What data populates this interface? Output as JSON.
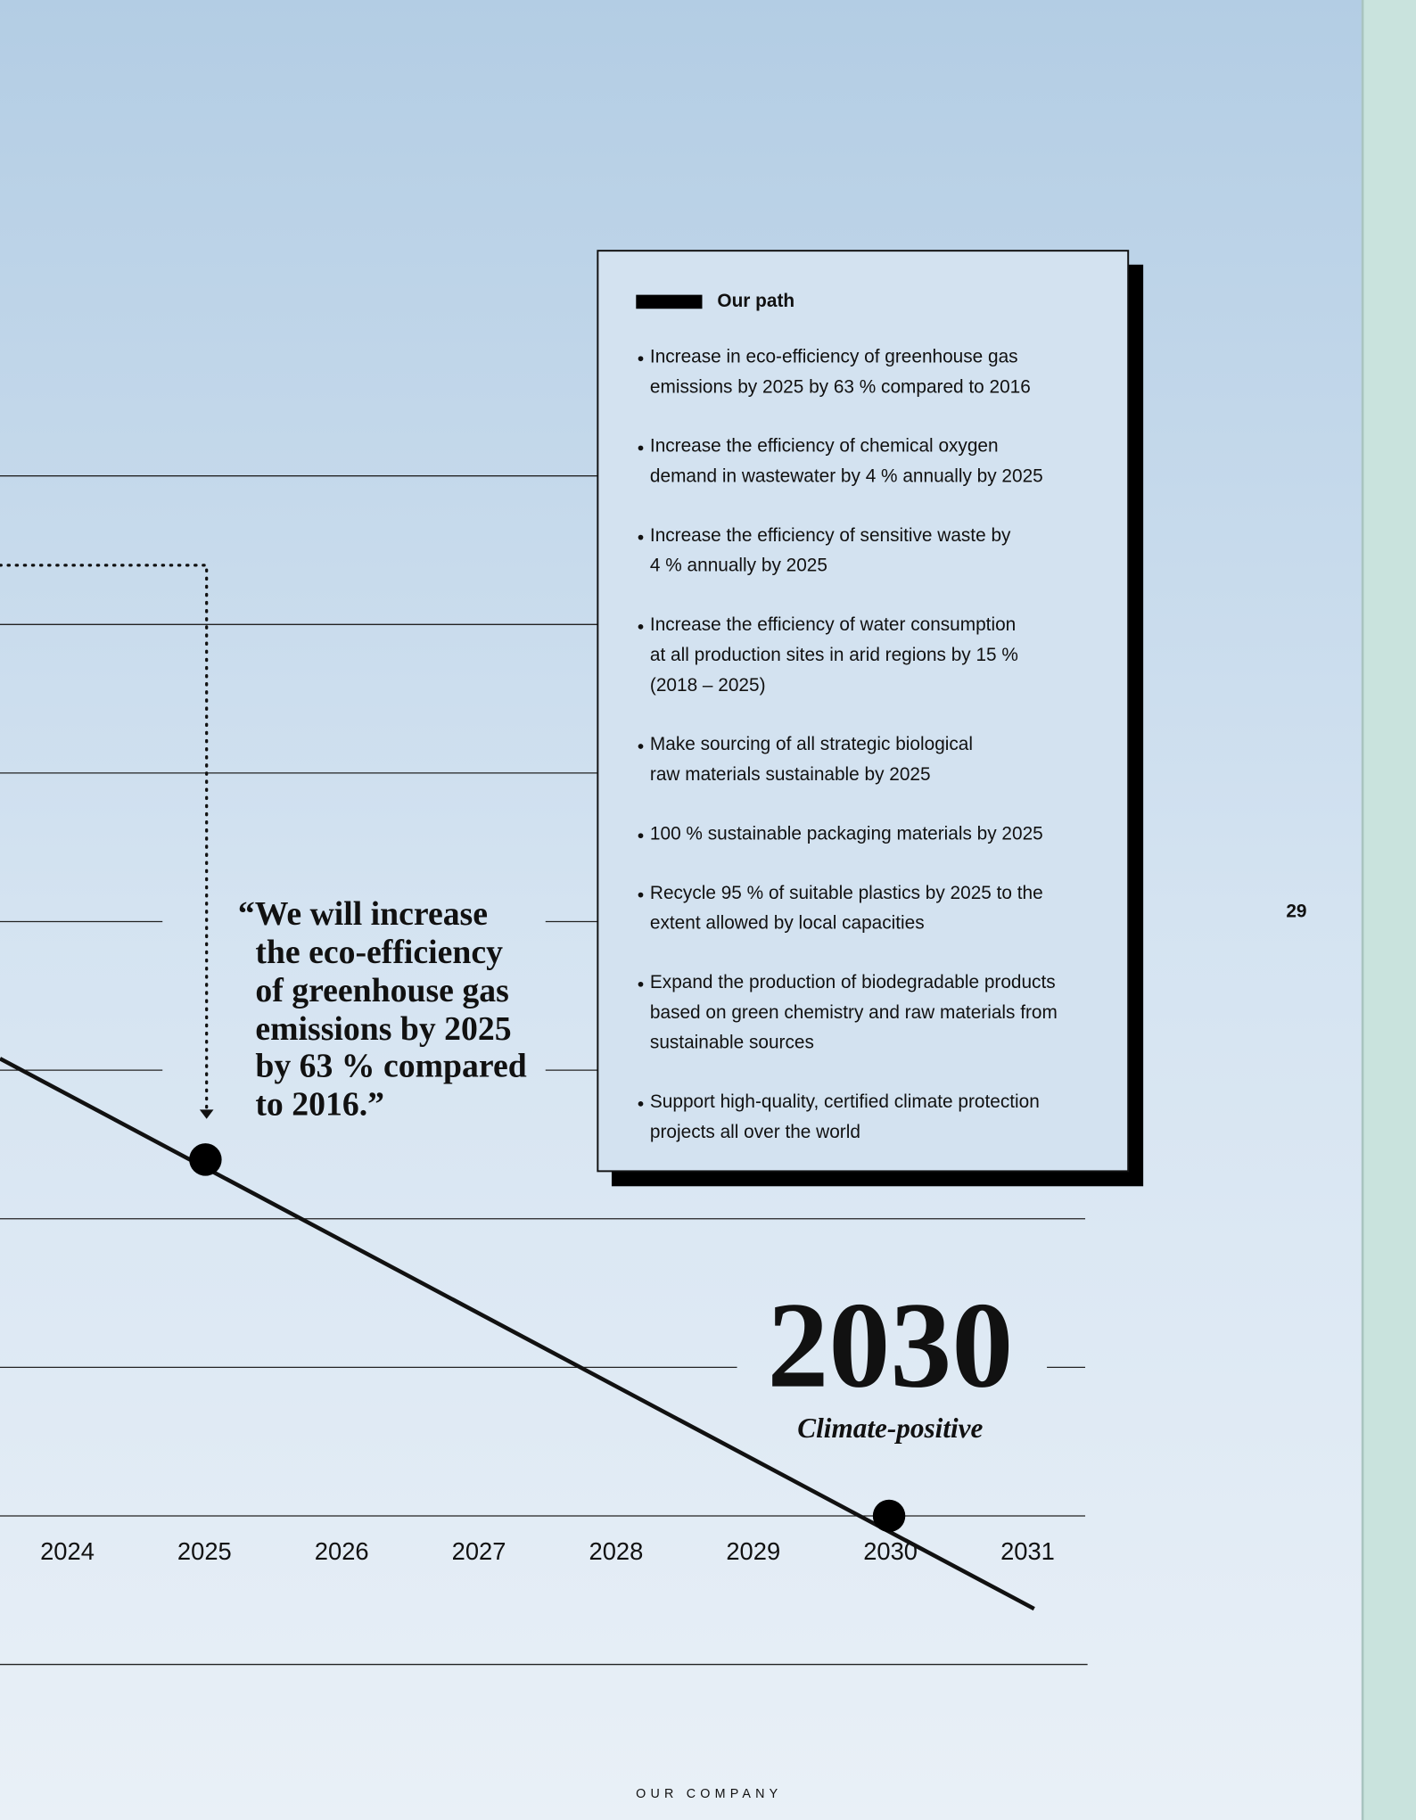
{
  "box": {
    "title": "Our path",
    "items": [
      [
        "Increase in eco-efficiency of greenhouse gas",
        "emissions by 2025 by 63 % compared to 2016"
      ],
      [
        "Increase the efficiency of chemical oxygen",
        "demand in wastewater by 4 % annually by 2025"
      ],
      [
        "Increase the efficiency of sensitive waste by",
        "4 % annually by 2025"
      ],
      [
        "Increase the efficiency of water consumption",
        "at all production sites in arid regions by 15 %",
        "(2018 – 2025)"
      ],
      [
        "Make sourcing of all strategic biological",
        "raw materials sustainable by 2025"
      ],
      [
        "100 % sustainable packaging materials by 2025"
      ],
      [
        "Recycle 95 % of suitable plastics by 2025 to the",
        "extent allowed by local capacities"
      ],
      [
        "Expand the production of biodegradable products",
        "based on green chemistry and raw materials from",
        "sustainable sources"
      ],
      [
        "Support high-quality, certified climate protection",
        "projects all over the world"
      ]
    ]
  },
  "quote": [
    "“We will increase",
    "the eco-efficiency",
    "of greenhouse gas",
    "emissions by 2025",
    "by 63 % compared",
    "to 2016.”"
  ],
  "timeline": {
    "years": [
      "2024",
      "2025",
      "2026",
      "2027",
      "2028",
      "2029",
      "2030",
      "2031"
    ],
    "target": "2030",
    "target_label": "Climate-positive"
  },
  "page_number": "29",
  "footer": "OUR COMPANY"
}
